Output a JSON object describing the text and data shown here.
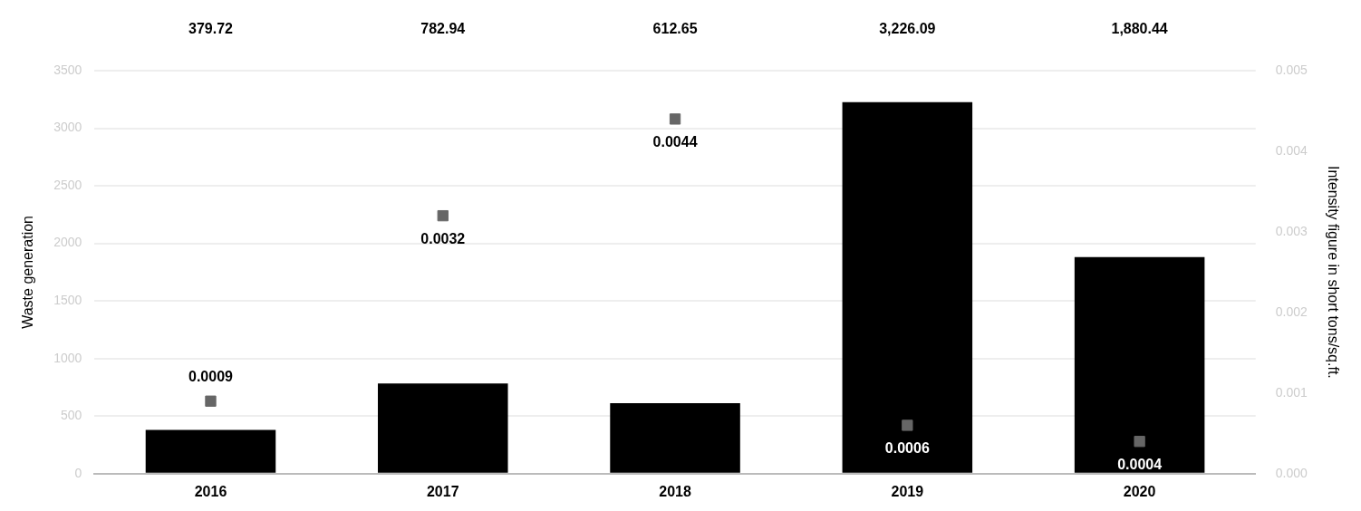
{
  "chart_data": {
    "type": "bar",
    "ylabel": "Waste generation",
    "y2label": "Intensity figure in short tons/sq.ft.",
    "categories": [
      "2016",
      "2017",
      "2018",
      "2019",
      "2020"
    ],
    "series": [
      {
        "color": "#000000",
        "values": [
          379.72,
          782.94,
          612.65,
          3226.09,
          1880.44
        ],
        "value_labels": [
          "379.72",
          "782.94",
          "612.65",
          "3,226.09",
          "1,880.44"
        ]
      },
      {
        "type": "scatter",
        "axis": "y2",
        "color": "#666666",
        "values": [
          0.0009,
          0.0032,
          0.0044,
          0.0006,
          0.0004
        ],
        "value_labels": [
          "0.0009",
          "0.0032",
          "0.0044",
          "0.0006",
          "0.0004"
        ]
      }
    ],
    "ylim": [
      0,
      3500
    ],
    "yticks": [
      0,
      500,
      1000,
      1500,
      2000,
      2500,
      3000,
      3500
    ],
    "y2lim": [
      0,
      0.005
    ],
    "y2ticks": [
      {
        "value": 0,
        "label": "0.000"
      },
      {
        "value": 0.001,
        "label": "0.001"
      },
      {
        "value": 0.002,
        "label": "0.002"
      },
      {
        "value": 0.003,
        "label": "0.003"
      },
      {
        "value": 0.004,
        "label": "0.004"
      },
      {
        "value": 0.005,
        "label": "0.005"
      }
    ],
    "grid": "y",
    "legend": false,
    "marker": "square"
  }
}
